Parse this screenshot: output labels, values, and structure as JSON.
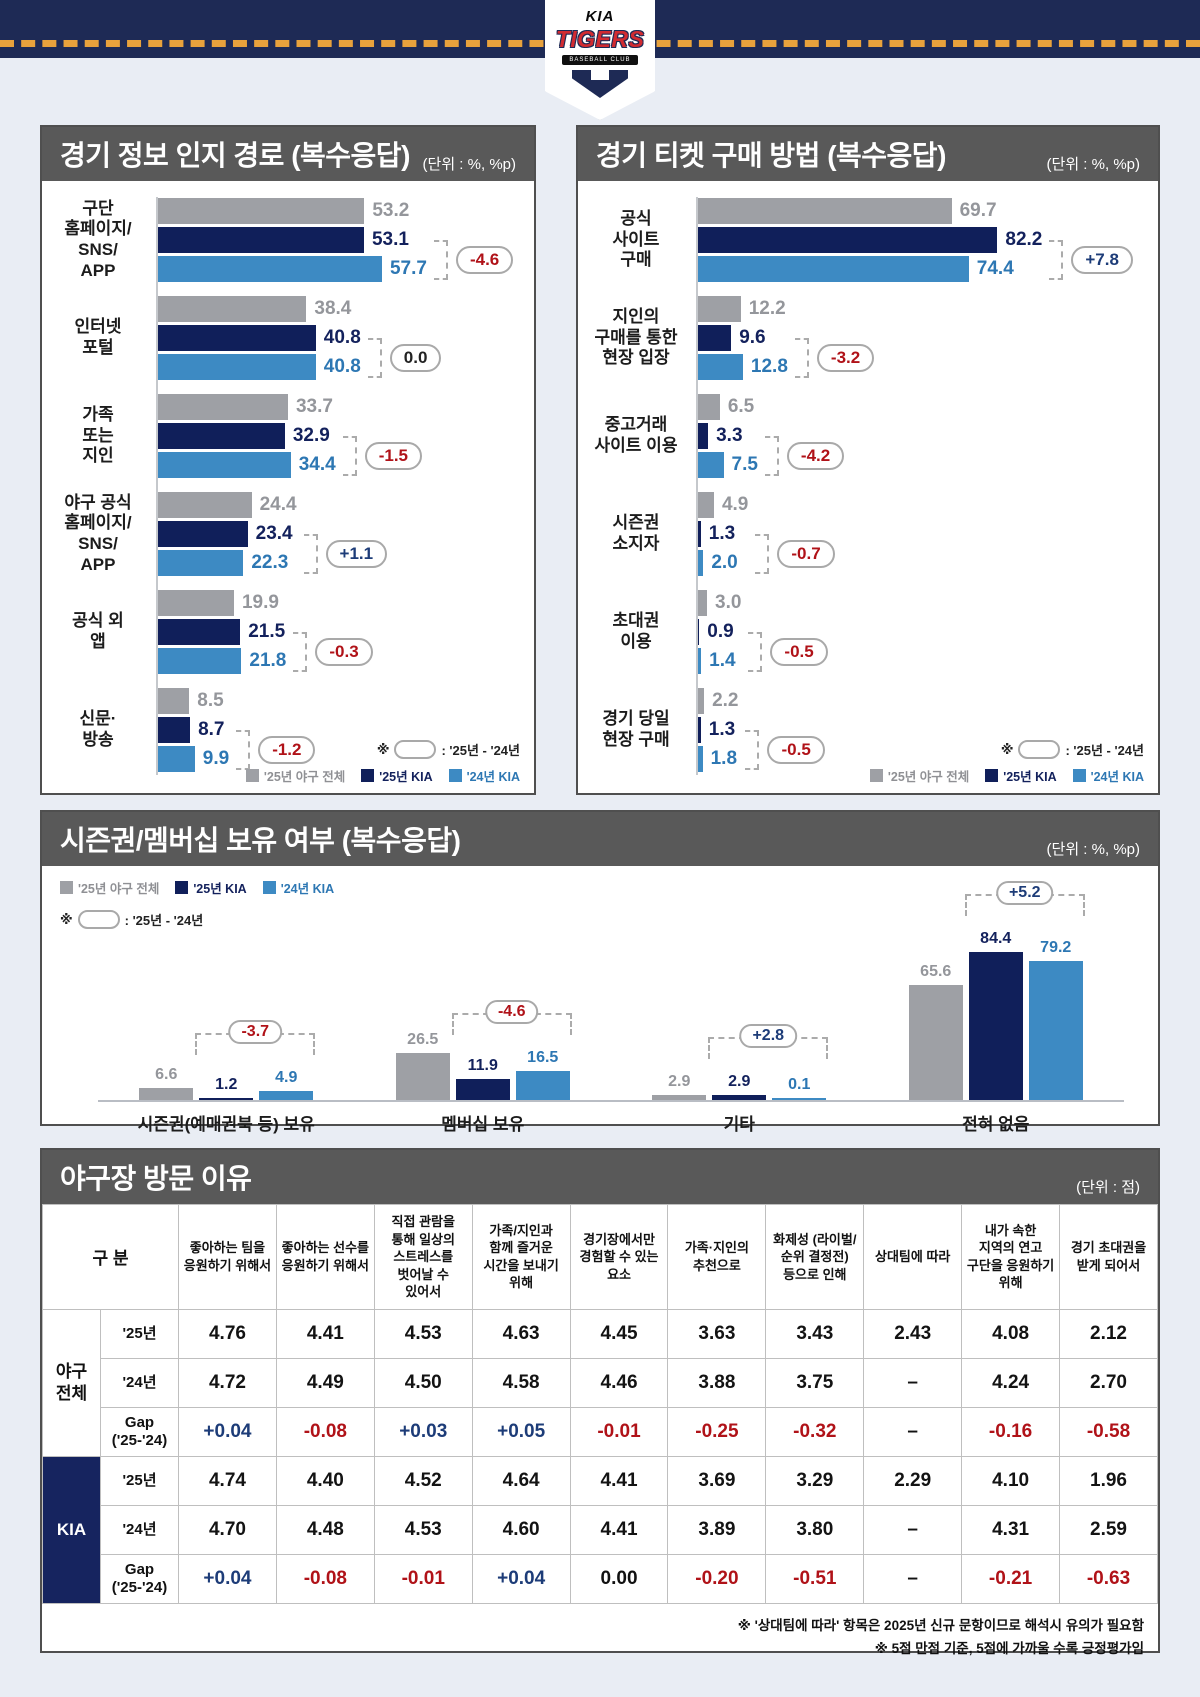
{
  "banner": {
    "brand": "KIA",
    "team": "TIGERS",
    "club": "BASEBALL CLUB"
  },
  "legend": {
    "note_prefix": "※",
    "note_suffix": ": '25년 - '24년",
    "series": [
      {
        "label": "'25년 야구 전체",
        "color": "#9ea0a5",
        "text_color": "#8f9094"
      },
      {
        "label": "'25년 KIA",
        "color": "#101f5a",
        "text_color": "#13215c"
      },
      {
        "label": "'24년 KIA",
        "color": "#3d8ac3",
        "text_color": "#2d77b3"
      }
    ]
  },
  "colors": {
    "page_bg": "#e9edf4",
    "band_navy": "#1e2a55",
    "band_dash_orange": "#e8a23c",
    "header_gray": "#595959",
    "panel_border": "#4f4f4f",
    "series": [
      "#9ea0a5",
      "#101f5a",
      "#3d8ac3"
    ],
    "series_text": [
      "#94969b",
      "#13215c",
      "#2d77b3"
    ],
    "diff": {
      "neg": "#b01218",
      "pos": "#1d3c78",
      "zero": "#222222"
    }
  },
  "chart_data": [
    {
      "id": "info-channels",
      "type": "bar",
      "orientation": "horizontal",
      "title": "경기 정보 인지 경로 (복수응답)",
      "unit": "(단위 : %, %p)",
      "series": [
        "'25년 야구 전체",
        "'25년 KIA",
        "'24년 KIA"
      ],
      "xlim": [
        0,
        60
      ],
      "rows": [
        {
          "label": "구단\n홈페이지/\nSNS/\nAPP",
          "values": [
            53.2,
            53.1,
            57.7
          ],
          "diff": "-4.6",
          "tone": "neg"
        },
        {
          "label": "인터넷\n포털",
          "values": [
            38.4,
            40.8,
            40.8
          ],
          "diff": "0.0",
          "tone": "zero"
        },
        {
          "label": "가족\n또는\n지인",
          "values": [
            33.7,
            32.9,
            34.4
          ],
          "diff": "-1.5",
          "tone": "neg"
        },
        {
          "label": "야구 공식\n홈페이지/\nSNS/\nAPP",
          "values": [
            24.4,
            23.4,
            22.3
          ],
          "diff": "+1.1",
          "tone": "pos"
        },
        {
          "label": "공식 외\n앱",
          "values": [
            19.9,
            21.5,
            21.8
          ],
          "diff": "-0.3",
          "tone": "neg"
        },
        {
          "label": "신문·\n방송",
          "values": [
            8.5,
            8.7,
            9.9
          ],
          "diff": "-1.2",
          "tone": "neg"
        }
      ]
    },
    {
      "id": "ticket-purchase",
      "type": "bar",
      "orientation": "horizontal",
      "title": "경기 티켓 구매 방법 (복수응답)",
      "unit": "(단위 : %, %p)",
      "series": [
        "'25년 야구 전체",
        "'25년 KIA",
        "'24년 KIA"
      ],
      "xlim": [
        0,
        90
      ],
      "rows": [
        {
          "label": "공식\n사이트\n구매",
          "values": [
            69.7,
            82.2,
            74.4
          ],
          "diff": "+7.8",
          "tone": "pos"
        },
        {
          "label": "지인의\n구매를 통한\n현장 입장",
          "values": [
            12.2,
            9.6,
            12.8
          ],
          "diff": "-3.2",
          "tone": "neg"
        },
        {
          "label": "중고거래\n사이트 이용",
          "values": [
            6.5,
            3.3,
            7.5
          ],
          "diff": "-4.2",
          "tone": "neg"
        },
        {
          "label": "시즌권\n소지자",
          "values": [
            4.9,
            1.3,
            2.0
          ],
          "diff": "-0.7",
          "tone": "neg"
        },
        {
          "label": "초대권\n이용",
          "values": [
            3.0,
            0.9,
            1.4
          ],
          "diff": "-0.5",
          "tone": "neg"
        },
        {
          "label": "경기 당일\n현장 구매",
          "values": [
            2.2,
            1.3,
            1.8
          ],
          "diff": "-0.5",
          "tone": "neg"
        }
      ]
    },
    {
      "id": "membership",
      "type": "bar",
      "orientation": "vertical",
      "title": "시즌권/멤버십 보유 여부 (복수응답)",
      "unit": "(단위 : %, %p)",
      "series": [
        "'25년 야구 전체",
        "'25년 KIA",
        "'24년 KIA"
      ],
      "ylim": [
        0,
        90
      ],
      "groups": [
        {
          "label": "시즌권(예매권북 등) 보유",
          "values": [
            6.6,
            1.2,
            4.9
          ],
          "diff": "-3.7",
          "tone": "neg"
        },
        {
          "label": "멤버십 보유",
          "values": [
            26.5,
            11.9,
            16.5
          ],
          "diff": "-4.6",
          "tone": "neg"
        },
        {
          "label": "기타",
          "values": [
            2.9,
            2.9,
            0.1
          ],
          "diff": "+2.8",
          "tone": "pos"
        },
        {
          "label": "전혀 없음",
          "values": [
            65.6,
            84.4,
            79.2
          ],
          "diff": "+5.2",
          "tone": "pos"
        }
      ]
    },
    {
      "id": "visit-reasons",
      "type": "table",
      "title": "야구장 방문 이유",
      "unit": "(단위 : 점)",
      "corner_header": "구  분",
      "columns": [
        "좋아하는 팀을 응원하기 위해서",
        "좋아하는 선수를 응원하기 위해서",
        "직접 관람을 통해 일상의 스트레스를 벗어날 수 있어서",
        "가족/지인과 함께 즐거운 시간을 보내기 위해",
        "경기장에서만 경험할 수 있는 요소",
        "가족·지인의 추천으로",
        "화제성 (라이벌/순위 결정전) 등으로 인해",
        "상대팀에 따라",
        "내가 속한 지역의 연고 구단을 응원하기 위해",
        "경기 초대권을 받게 되어서"
      ],
      "groups": [
        {
          "name": "야구\n전체",
          "style": "light",
          "rows": [
            {
              "label": "'25년",
              "tone": "plain",
              "values": [
                "4.76",
                "4.41",
                "4.53",
                "4.63",
                "4.45",
                "3.63",
                "3.43",
                "2.43",
                "4.08",
                "2.12"
              ]
            },
            {
              "label": "'24년",
              "tone": "plain",
              "values": [
                "4.72",
                "4.49",
                "4.50",
                "4.58",
                "4.46",
                "3.88",
                "3.75",
                "–",
                "4.24",
                "2.70"
              ]
            },
            {
              "label": "Gap\n('25-'24)",
              "tone": "gap",
              "values": [
                "+0.04",
                "-0.08",
                "+0.03",
                "+0.05",
                "-0.01",
                "-0.25",
                "-0.32",
                "–",
                "-0.16",
                "-0.58"
              ]
            }
          ]
        },
        {
          "name": "KIA",
          "style": "navy",
          "rows": [
            {
              "label": "'25년",
              "tone": "plain",
              "values": [
                "4.74",
                "4.40",
                "4.52",
                "4.64",
                "4.41",
                "3.69",
                "3.29",
                "2.29",
                "4.10",
                "1.96"
              ]
            },
            {
              "label": "'24년",
              "tone": "plain",
              "values": [
                "4.70",
                "4.48",
                "4.53",
                "4.60",
                "4.41",
                "3.89",
                "3.80",
                "–",
                "4.31",
                "2.59"
              ]
            },
            {
              "label": "Gap\n('25-'24)",
              "tone": "gap",
              "values": [
                "+0.04",
                "-0.08",
                "-0.01",
                "+0.04",
                "0.00",
                "-0.20",
                "-0.51",
                "–",
                "-0.21",
                "-0.63"
              ]
            }
          ]
        }
      ],
      "footnotes": [
        "※ '상대팀에 따라' 항목은 2025년 신규 문항이므로 해석시 유의가 필요함",
        "※ 5점 만점 기준, 5점에 가까울 수록 긍정평가임"
      ]
    }
  ]
}
